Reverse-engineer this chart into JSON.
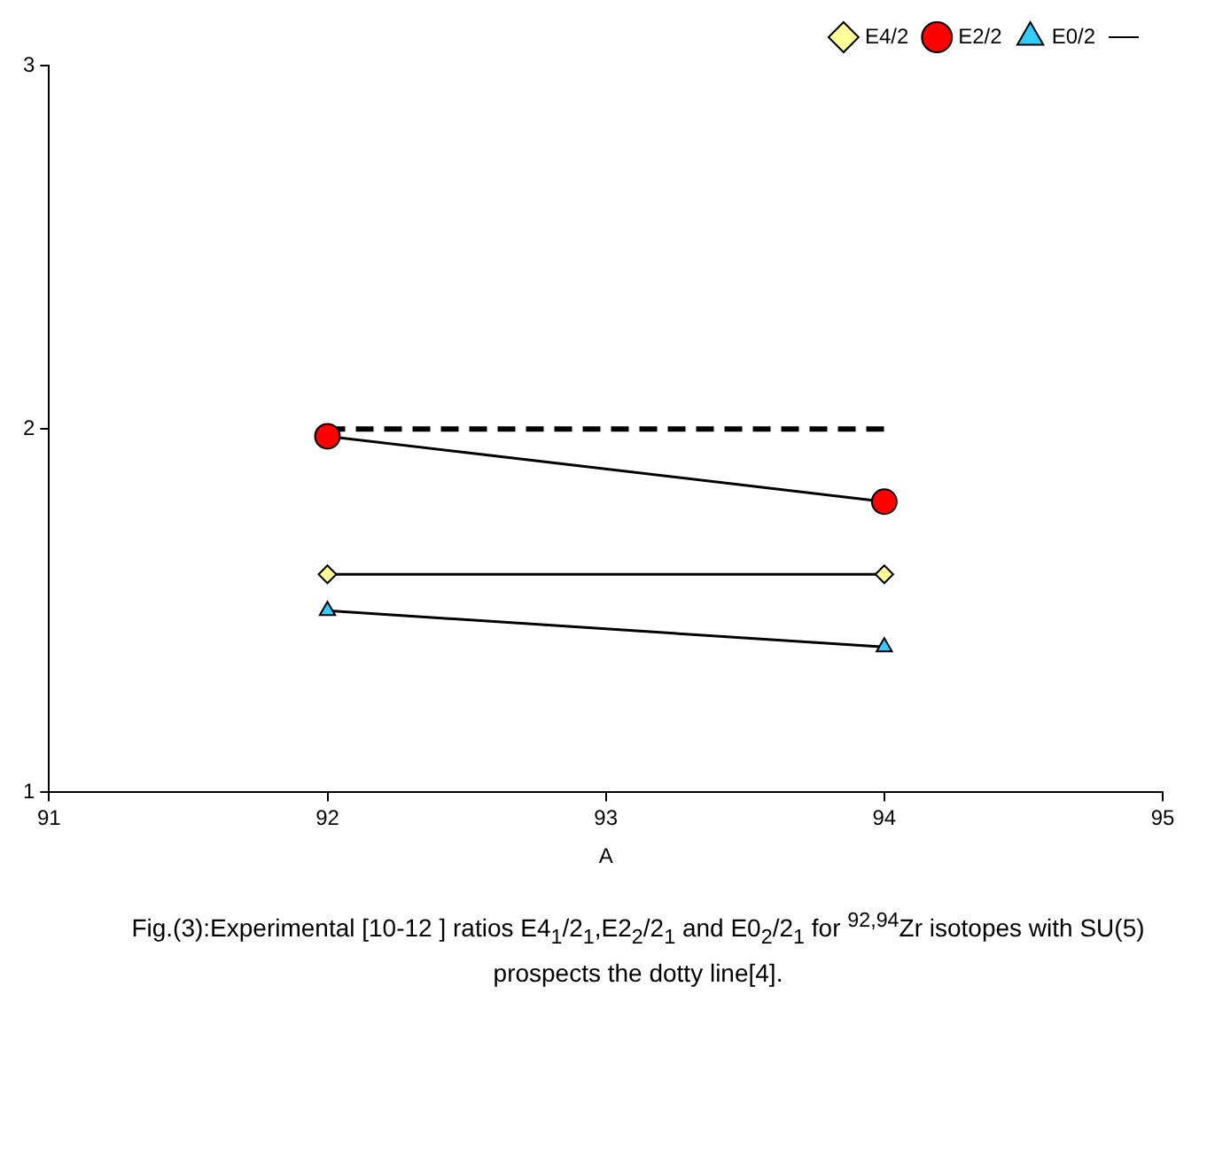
{
  "chart_data": {
    "type": "line",
    "xlabel": "A",
    "x": [
      92,
      94
    ],
    "series": [
      {
        "name": "E4/2",
        "color": "#ffff99",
        "marker": "diamond",
        "line_style": "solid",
        "values": [
          1.6,
          1.6
        ]
      },
      {
        "name": "E2/2",
        "color": "#ff0000",
        "marker": "circle",
        "line_style": "solid",
        "values": [
          1.98,
          1.8
        ]
      },
      {
        "name": "E0/2",
        "color": "#33ccff",
        "marker": "triangle",
        "line_style": "solid",
        "values": [
          1.5,
          1.4
        ]
      },
      {
        "color": "#000000",
        "marker": "none",
        "line_style": "dashed",
        "values": [
          2,
          2
        ]
      }
    ],
    "xlim": [
      91,
      95
    ],
    "xticks": [
      91,
      92,
      93,
      94,
      95
    ],
    "ylim": [
      1,
      3
    ],
    "yticks": [
      1,
      2,
      3
    ],
    "grid": false,
    "legend": "top right",
    "annotations": [
      "Fig.(3):Experimental [10-12 ]  ratios E4$_{1}$/2$_{1}$,E2$_{2}$/2$_{1}$ and E0$_{2}$/2$_{1}$  for $^{92,94}$Zr isotopes with SU(5) prospects the dotty line[4]."
    ]
  }
}
